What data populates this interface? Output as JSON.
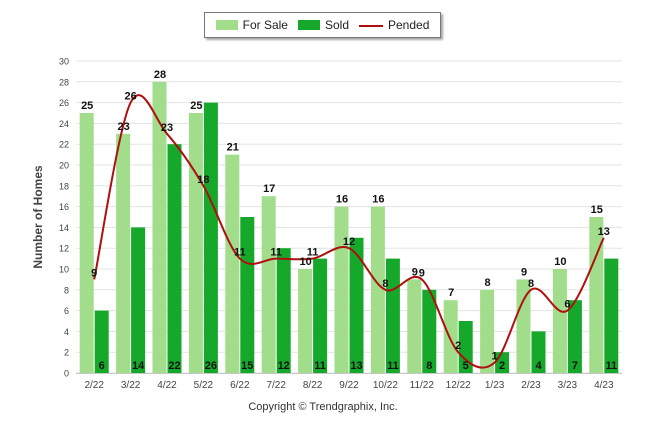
{
  "chart_data": {
    "type": "bar",
    "categories": [
      "2/22",
      "3/22",
      "4/22",
      "5/22",
      "6/22",
      "7/22",
      "8/22",
      "9/22",
      "10/22",
      "11/22",
      "12/22",
      "1/23",
      "2/23",
      "3/23",
      "4/23"
    ],
    "series": [
      {
        "name": "For Sale",
        "type": "bar",
        "color": "#a2dd8c",
        "values": [
          25,
          23,
          28,
          25,
          21,
          17,
          10,
          16,
          16,
          9,
          7,
          8,
          9,
          10,
          15
        ]
      },
      {
        "name": "Sold",
        "type": "bar",
        "color": "#16a82a",
        "values": [
          6,
          14,
          22,
          26,
          15,
          12,
          11,
          13,
          11,
          8,
          5,
          2,
          4,
          7,
          11
        ]
      },
      {
        "name": "Pended",
        "type": "line",
        "color": "#b00f0f",
        "values": [
          9,
          26,
          23,
          18,
          11,
          11,
          11,
          12,
          8,
          9,
          2,
          1,
          8,
          6,
          13
        ]
      }
    ],
    "ylabel": "Number of Homes",
    "ylim": [
      0,
      30
    ],
    "yticks": [
      0,
      2,
      4,
      6,
      8,
      10,
      12,
      14,
      16,
      18,
      20,
      22,
      24,
      26,
      28,
      30
    ],
    "grid": true,
    "legend_position": "top-center"
  },
  "footer": {
    "copyright": "Copyright © Trendgraphix, Inc."
  }
}
